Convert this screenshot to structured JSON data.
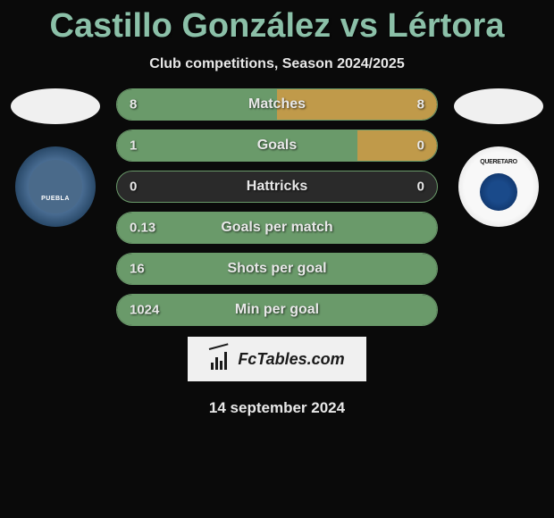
{
  "title": "Castillo González vs Lértora",
  "subtitle": "Club competitions, Season 2024/2025",
  "date": "14 september 2024",
  "brand": "FcTables.com",
  "player_left": {
    "club": "Puebla"
  },
  "player_right": {
    "club": "Queretaro"
  },
  "stats": [
    {
      "label": "Matches",
      "value_left": "8",
      "value_right": "8",
      "fill_left_pct": 50,
      "fill_right_pct": 50,
      "fill_left_color": "#6a9a6a",
      "fill_right_color": "#c09a4a"
    },
    {
      "label": "Goals",
      "value_left": "1",
      "value_right": "0",
      "fill_left_pct": 75,
      "fill_right_pct": 25,
      "fill_left_color": "#6a9a6a",
      "fill_right_color": "#c09a4a"
    },
    {
      "label": "Hattricks",
      "value_left": "0",
      "value_right": "0",
      "fill_left_pct": 0,
      "fill_right_pct": 0,
      "fill_left_color": "#6a9a6a",
      "fill_right_color": "#c09a4a"
    },
    {
      "label": "Goals per match",
      "value_left": "0.13",
      "value_right": "",
      "fill_left_pct": 100,
      "fill_right_pct": 0,
      "fill_left_color": "#6a9a6a",
      "fill_right_color": "#c09a4a"
    },
    {
      "label": "Shots per goal",
      "value_left": "16",
      "value_right": "",
      "fill_left_pct": 100,
      "fill_right_pct": 0,
      "fill_left_color": "#6a9a6a",
      "fill_right_color": "#c09a4a"
    },
    {
      "label": "Min per goal",
      "value_left": "1024",
      "value_right": "",
      "fill_left_pct": 100,
      "fill_right_pct": 0,
      "fill_left_color": "#6a9a6a",
      "fill_right_color": "#c09a4a"
    }
  ],
  "colors": {
    "background": "#0a0a0a",
    "title_color": "#8bc0a8",
    "text_color": "#e8e8e8",
    "bar_bg": "#2a2a2a",
    "bar_border": "#6a9a6a"
  }
}
